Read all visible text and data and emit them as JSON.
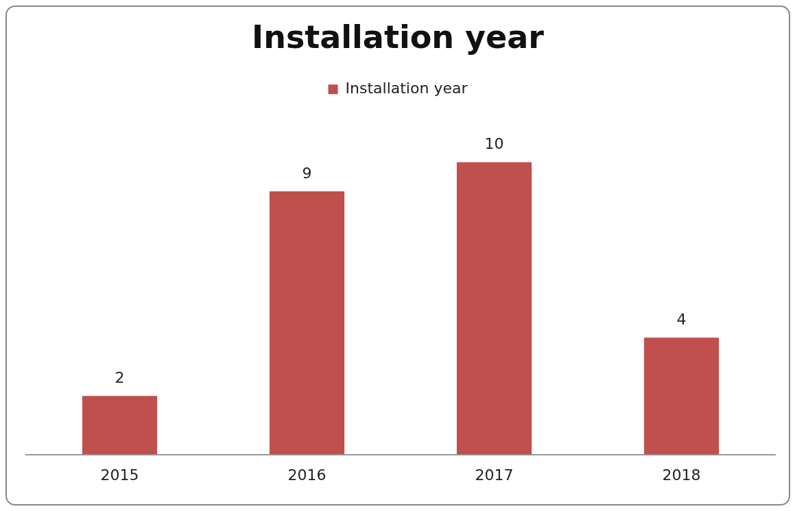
{
  "chart_data": {
    "type": "bar",
    "title": "Installation year",
    "categories": [
      "2015",
      "2016",
      "2017",
      "2018"
    ],
    "series": [
      {
        "name": "Installation year",
        "color": "#c0504d",
        "values": [
          2,
          9,
          10,
          4
        ]
      }
    ],
    "data_labels": true,
    "legend": "top",
    "grid": false
  }
}
